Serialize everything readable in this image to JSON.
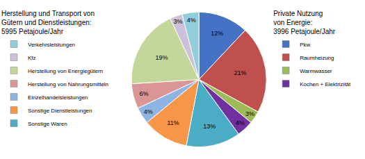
{
  "chart_data": {
    "type": "pie",
    "categories": [
      "Pkw",
      "Raumheizung",
      "Warmwasser",
      "Kochen + Elektrizität",
      "Sonstige Waren",
      "Sonstige Dienstleistungen",
      "Einzelhandelsleistungen",
      "Herstellung von Nahrungsmitteln",
      "Herstellung von Energiegütern",
      "Kfz",
      "Verkehrsleistungen"
    ],
    "values": [
      12,
      21,
      3,
      4,
      13,
      11,
      4,
      6,
      19,
      3,
      4
    ],
    "value_labels": [
      "12%",
      "21%",
      "3%",
      "4%",
      "13%",
      "11%",
      "4%",
      "6%",
      "19%",
      "3%",
      "4%"
    ],
    "colors": [
      "#4472C4",
      "#C0504D",
      "#9BBB59",
      "#7030A0",
      "#4BACC6",
      "#F79646",
      "#8DB4E2",
      "#DA9694",
      "#C4D79B",
      "#CCC0DA",
      "#92CDDC"
    ],
    "data_labels": true,
    "legends": [
      {
        "title": "Herstellung und Transport von\nGütern und Dienstleistungen:\n5995 Petajoule/Jahr",
        "entries": [
          "Verkehrsleistungen",
          "Kfz",
          "Herstellung von Energiegütern",
          "Herstellung von Nahrungsmitteln",
          "Einzelhandelsleistungen",
          "Sonstige Dienstleistungen",
          "Sonstige Waren"
        ]
      },
      {
        "title": "Private Nutzung\nvon Energie:\n3996 Petajoule/Jahr",
        "entries": [
          "Pkw",
          "Raumheizung",
          "Warmwasser",
          "Kochen + Elektrizität"
        ]
      }
    ]
  }
}
